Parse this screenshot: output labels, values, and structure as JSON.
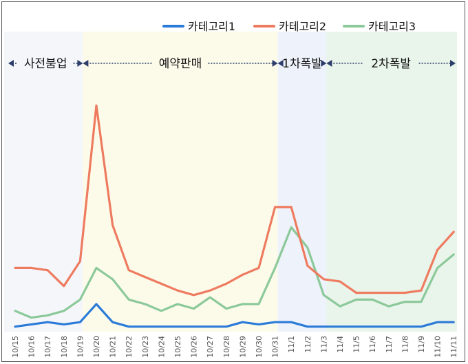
{
  "chart_data": {
    "type": "line",
    "title": "",
    "xlabel": "",
    "ylabel": "",
    "grid": false,
    "legend_position": "top-right",
    "x": [
      "10/15",
      "10/16",
      "10/17",
      "10/18",
      "10/19",
      "10/20",
      "10/21",
      "10/22",
      "10/23",
      "10/24",
      "10/25",
      "10/26",
      "10/27",
      "10/28",
      "10/29",
      "10/30",
      "10/31",
      "11/1",
      "11/2",
      "11/3",
      "11/4",
      "11/5",
      "11/6",
      "11/7",
      "11/8",
      "11/9",
      "11/10",
      "11/11"
    ],
    "ylim": [
      0,
      100
    ],
    "series": [
      {
        "name": "카테고리1",
        "color": "#2B7BD8",
        "values": [
          1,
          2,
          3,
          2,
          3,
          11,
          3,
          1,
          1,
          1,
          1,
          1,
          1,
          1,
          3,
          2,
          3,
          3,
          1,
          1,
          1,
          1,
          1,
          1,
          1,
          1,
          3,
          3
        ]
      },
      {
        "name": "카테고리2",
        "color": "#EE7B5F",
        "values": [
          27,
          27,
          26,
          19,
          30,
          99,
          46,
          26,
          23,
          20,
          17,
          15,
          17,
          20,
          24,
          27,
          54,
          54,
          28,
          22,
          21,
          16,
          16,
          16,
          16,
          17,
          35,
          43
        ]
      },
      {
        "name": "카테고리3",
        "color": "#8CC99A",
        "values": [
          8,
          5,
          6,
          8,
          13,
          27,
          22,
          13,
          11,
          8,
          11,
          9,
          14,
          9,
          11,
          11,
          27,
          45,
          36,
          15,
          10,
          13,
          13,
          10,
          12,
          12,
          27,
          33
        ]
      }
    ],
    "phases": [
      {
        "label": "사전붐업",
        "start": "10/15",
        "end": "10/19",
        "color": "#F4F6FA"
      },
      {
        "label": "예약판매",
        "start": "10/19",
        "end": "10/31",
        "color": "#FCFBEA"
      },
      {
        "label": "1차폭발",
        "start": "10/31",
        "end": "11/3",
        "color": "#EEF2FA"
      },
      {
        "label": "2차폭발",
        "start": "11/3",
        "end": "11/11",
        "color": "#E9F4EA"
      }
    ]
  }
}
